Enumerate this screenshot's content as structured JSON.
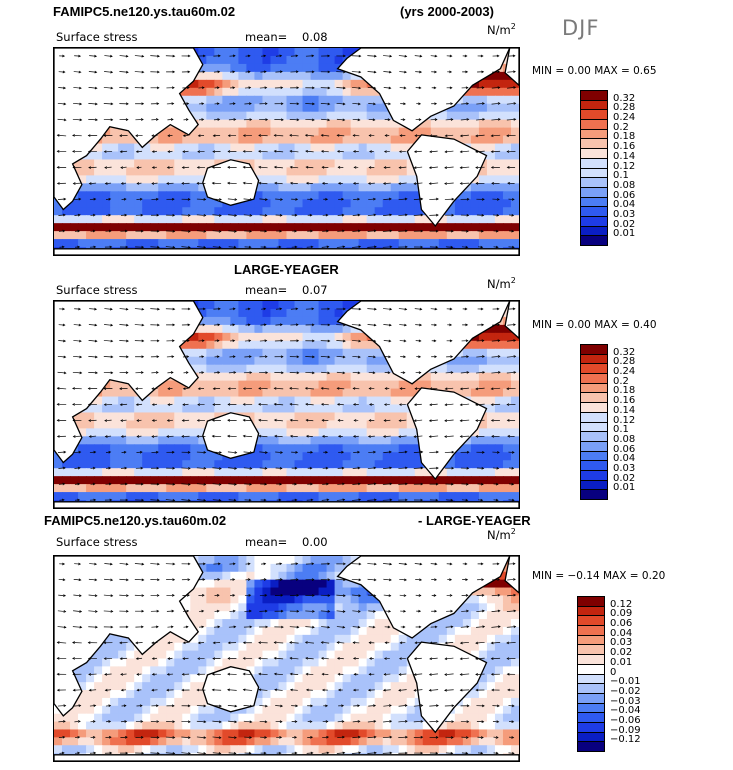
{
  "figure": {
    "top_title_left": "FAMIPC5.ne120.ys.tau60m.02",
    "top_title_right": "(yrs 2000-2003)",
    "season": "DJF",
    "panel2_title": "LARGE-YEAGER",
    "panel3_title_left": "FAMIPC5.ne120.ys.tau60m.02",
    "panel3_title_right": "- LARGE-YEAGER"
  },
  "colors": {
    "seq": [
      "#08007f",
      "#0a1ec4",
      "#1e3ce6",
      "#2f5af0",
      "#4c7df4",
      "#7aa0f7",
      "#a9c2fa",
      "#d2e0fd",
      "#fbe3da",
      "#f8c3ad",
      "#f59c7b",
      "#ef7150",
      "#e24a2a",
      "#c3250f",
      "#7f0000"
    ],
    "div": [
      "#08007f",
      "#0a1ec4",
      "#1e3ce6",
      "#2f5af0",
      "#4c7df4",
      "#7aa0f7",
      "#a9c2fa",
      "#d2e0fd",
      "#ffffff",
      "#fbe3da",
      "#f8c3ad",
      "#f59c7b",
      "#ef7150",
      "#e24a2a",
      "#c3250f",
      "#7f0000"
    ]
  },
  "chart_data": [
    {
      "type": "heatmap",
      "subtitle": "Surface stress",
      "mean_label": "mean=",
      "mean": "0.08",
      "units_base": "N/m",
      "units_exp": "2",
      "min_label": "MIN =",
      "min": "0.00",
      "max_label": "MAX =",
      "max": "0.65",
      "colorbar_levels": [
        "0.32",
        "0.28",
        "0.24",
        "0.2",
        "0.18",
        "0.16",
        "0.14",
        "0.12",
        "0.1",
        "0.08",
        "0.06",
        "0.04",
        "0.03",
        "0.02",
        "0.01"
      ]
    },
    {
      "type": "heatmap",
      "subtitle": "Surface stress",
      "mean_label": "mean=",
      "mean": "0.07",
      "units_base": "N/m",
      "units_exp": "2",
      "min_label": "MIN =",
      "min": "0.00",
      "max_label": "MAX =",
      "max": "0.40",
      "colorbar_levels": [
        "0.32",
        "0.28",
        "0.24",
        "0.2",
        "0.18",
        "0.16",
        "0.14",
        "0.12",
        "0.1",
        "0.08",
        "0.06",
        "0.04",
        "0.03",
        "0.02",
        "0.01"
      ]
    },
    {
      "type": "heatmap",
      "subtitle": "Surface stress",
      "mean_label": "mean=",
      "mean": "0.00",
      "units_base": "N/m",
      "units_exp": "2",
      "min_label": "MIN =",
      "min": "−0.14",
      "max_label": "MAX =",
      "max": "0.20",
      "colorbar_levels": [
        "0.12",
        "0.09",
        "0.06",
        "0.04",
        "0.03",
        "0.02",
        "0.01",
        "0",
        "−0.01",
        "−0.02",
        "−0.03",
        "−0.04",
        "−0.06",
        "−0.09",
        "−0.12"
      ]
    }
  ]
}
